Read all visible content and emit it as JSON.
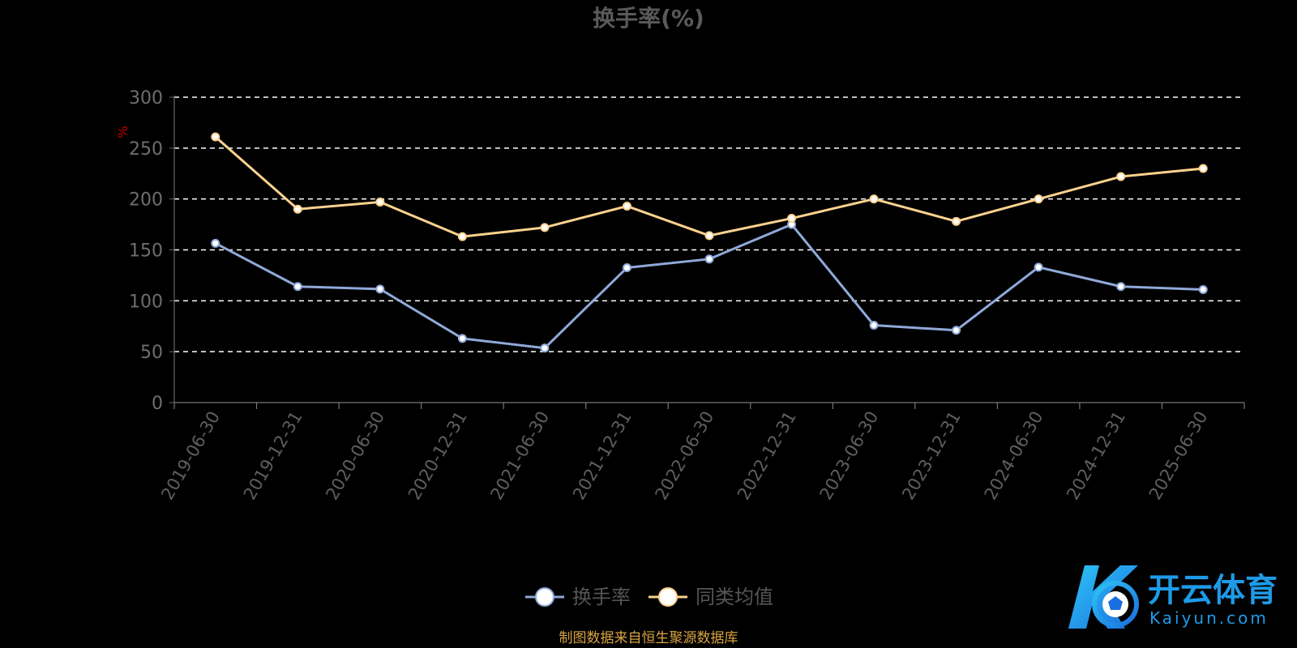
{
  "chart_data": {
    "type": "line",
    "title": "换手率(%)",
    "ylabel": "%",
    "ylim": [
      0,
      300
    ],
    "yticks": [
      0,
      50,
      100,
      150,
      200,
      250,
      300
    ],
    "grid": true,
    "legend_position": "bottom-center",
    "categories": [
      "2019-06-30",
      "2019-12-31",
      "2020-06-30",
      "2020-12-31",
      "2021-06-30",
      "2021-12-31",
      "2022-06-30",
      "2022-12-31",
      "2023-06-30",
      "2023-12-31",
      "2024-06-30",
      "2024-12-31",
      "2025-06-30"
    ],
    "series": [
      {
        "name": "换手率",
        "color": "#8fa9d9",
        "values": [
          156.5,
          114,
          111.5,
          63,
          53.5,
          132.5,
          141,
          175,
          76,
          71,
          133,
          114,
          111
        ]
      },
      {
        "name": "同类均值",
        "color": "#fcd28f",
        "values": [
          261,
          190,
          197,
          163,
          172,
          193,
          164,
          181,
          200,
          178,
          200,
          222,
          230
        ]
      }
    ]
  },
  "source_note": "制图数据来自恒生聚源数据库",
  "logo": {
    "text": "开云体育",
    "sub": "Kaiyun.com",
    "icon": "k-soccer-ball-logo-icon"
  }
}
